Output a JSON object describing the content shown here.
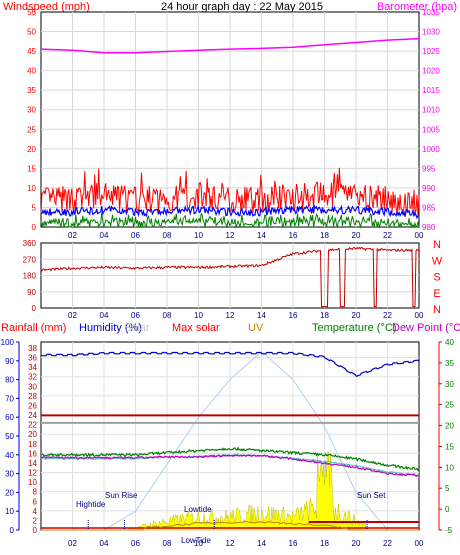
{
  "title": "24 hour graph day : 22 May 2015",
  "colors": {
    "wind": "#ff0000",
    "gust": "#ff0000",
    "avg": "#0000ff",
    "min": "#008000",
    "baro": "#ff00ff",
    "dir": "#c00000",
    "humidity": "#0000c0",
    "temp": "#008000",
    "dew": "#c000c0",
    "rain": "#c00000",
    "solar": "#ffff00",
    "solar_edge": "#c0c000",
    "max_solar": "#b0d0f0",
    "uv": "#c08000",
    "grey": "#a0a0a0",
    "teal": "#40c0c0"
  },
  "panel1": {
    "left_label": "Windspeed (mph)",
    "right_label": "Barometer (hpa)",
    "left_ticks": [
      "55",
      "50",
      "45",
      "40",
      "35",
      "30",
      "25",
      "20",
      "15",
      "10",
      "5",
      "0"
    ],
    "right_ticks": [
      "1035",
      "1030",
      "1025",
      "1020",
      "1015",
      "1010",
      "1005",
      "1000",
      "995",
      "990",
      "985",
      "980"
    ],
    "x_ticks": [
      "02",
      "04",
      "06",
      "08",
      "10",
      "12",
      "14",
      "16",
      "18",
      "20",
      "22",
      "00"
    ]
  },
  "panel2": {
    "left_ticks": [
      "360",
      "270",
      "180",
      "90",
      "0"
    ],
    "right_ticks": [
      "N",
      "W",
      "S",
      "E",
      "N"
    ],
    "x_ticks": [
      "02",
      "04",
      "06",
      "08",
      "10",
      "12",
      "14",
      "16",
      "18",
      "20",
      "22",
      "00"
    ]
  },
  "panel3": {
    "labels": {
      "rainfall": "Rainfall (mm)",
      "humidity": "Humidity (%)",
      "solar": "Solar",
      "max_solar": "Max solar",
      "uv": "UV",
      "temperature": "Temperature (°C)",
      "dewpoint": "Dew Point (°C)"
    },
    "left_ticks": [
      "100",
      "90",
      "80",
      "70",
      "60",
      "50",
      "40",
      "30",
      "20",
      "10",
      "0"
    ],
    "mid_ticks": [
      "38",
      "36",
      "34",
      "32",
      "30",
      "28",
      "26",
      "24",
      "22",
      "20",
      "18",
      "16",
      "14",
      "12",
      "10",
      "8",
      "6",
      "4",
      "2",
      "0"
    ],
    "right_ticks": [
      "40",
      "35",
      "30",
      "25",
      "20",
      "15",
      "10",
      "5",
      "0",
      "-5"
    ],
    "x_ticks": [
      "02",
      "04",
      "06",
      "08",
      "10",
      "12",
      "14",
      "16",
      "18",
      "20",
      "22",
      "00"
    ],
    "annotations": {
      "hightide": "Hightide",
      "sunrise": "Sun Rise",
      "lowtide": "Lowtide",
      "lowtide2": "LowTide",
      "sunset": "Sun Set"
    }
  },
  "chart_data": [
    {
      "type": "line",
      "title": "24 hour graph day : 22 May 2015",
      "ylabel": "Windspeed (mph)",
      "y2label": "Barometer (hpa)",
      "ylim": [
        0,
        55
      ],
      "y2lim": [
        980,
        1035
      ],
      "x_hours": [
        0,
        2,
        4,
        6,
        8,
        10,
        12,
        14,
        16,
        18,
        20,
        22,
        24
      ],
      "series": [
        {
          "name": "Windspeed (mph)",
          "values": [
            7,
            7,
            8,
            7,
            7,
            8,
            7,
            7,
            8,
            8,
            8,
            7,
            6
          ]
        },
        {
          "name": "Barometer (hpa)",
          "values": [
            1025.5,
            1025.2,
            1024.6,
            1024.6,
            1024.9,
            1025.2,
            1025.5,
            1025.7,
            1026.0,
            1026.6,
            1027.2,
            1027.8,
            1028.2
          ]
        }
      ]
    },
    {
      "type": "line",
      "ylabel": "Wind direction",
      "ylim": [
        0,
        360
      ],
      "x_hours": [
        0,
        2,
        4,
        6,
        8,
        10,
        12,
        14,
        16,
        18,
        20,
        22,
        24
      ],
      "series": [
        {
          "values": [
            210,
            220,
            225,
            220,
            225,
            225,
            230,
            235,
            300,
            320,
            330,
            320,
            320
          ]
        }
      ]
    },
    {
      "type": "line",
      "ylabel": "Humidity (%)",
      "y2label": "Temperature (°C)",
      "ylim": [
        0,
        100
      ],
      "y2lim": [
        -5,
        40
      ],
      "x_hours": [
        0,
        2,
        4,
        6,
        8,
        10,
        12,
        14,
        16,
        18,
        20,
        22,
        24
      ],
      "series": [
        {
          "name": "Humidity (%)",
          "values": [
            93,
            93,
            94,
            94,
            94,
            94,
            94,
            94,
            94,
            92,
            82,
            88,
            90
          ]
        },
        {
          "name": "Temperature (°C)",
          "values": [
            13.0,
            13.0,
            13.0,
            13.0,
            13.5,
            14.0,
            14.5,
            14.0,
            13.5,
            13.0,
            12.0,
            10.5,
            9.5
          ]
        },
        {
          "name": "Dew Point (°C)",
          "values": [
            12.5,
            12.3,
            12.3,
            12.3,
            12.5,
            12.5,
            12.8,
            12.8,
            12.0,
            11.0,
            10.0,
            8.5,
            8.0
          ]
        },
        {
          "name": "Max solar",
          "values": [
            0,
            0,
            0,
            10,
            35,
            60,
            80,
            95,
            80,
            55,
            20,
            0,
            0
          ]
        },
        {
          "name": "Solar",
          "values": [
            0,
            0,
            0,
            1,
            4,
            6,
            6,
            8,
            6,
            12,
            4,
            0,
            0
          ]
        }
      ]
    }
  ]
}
